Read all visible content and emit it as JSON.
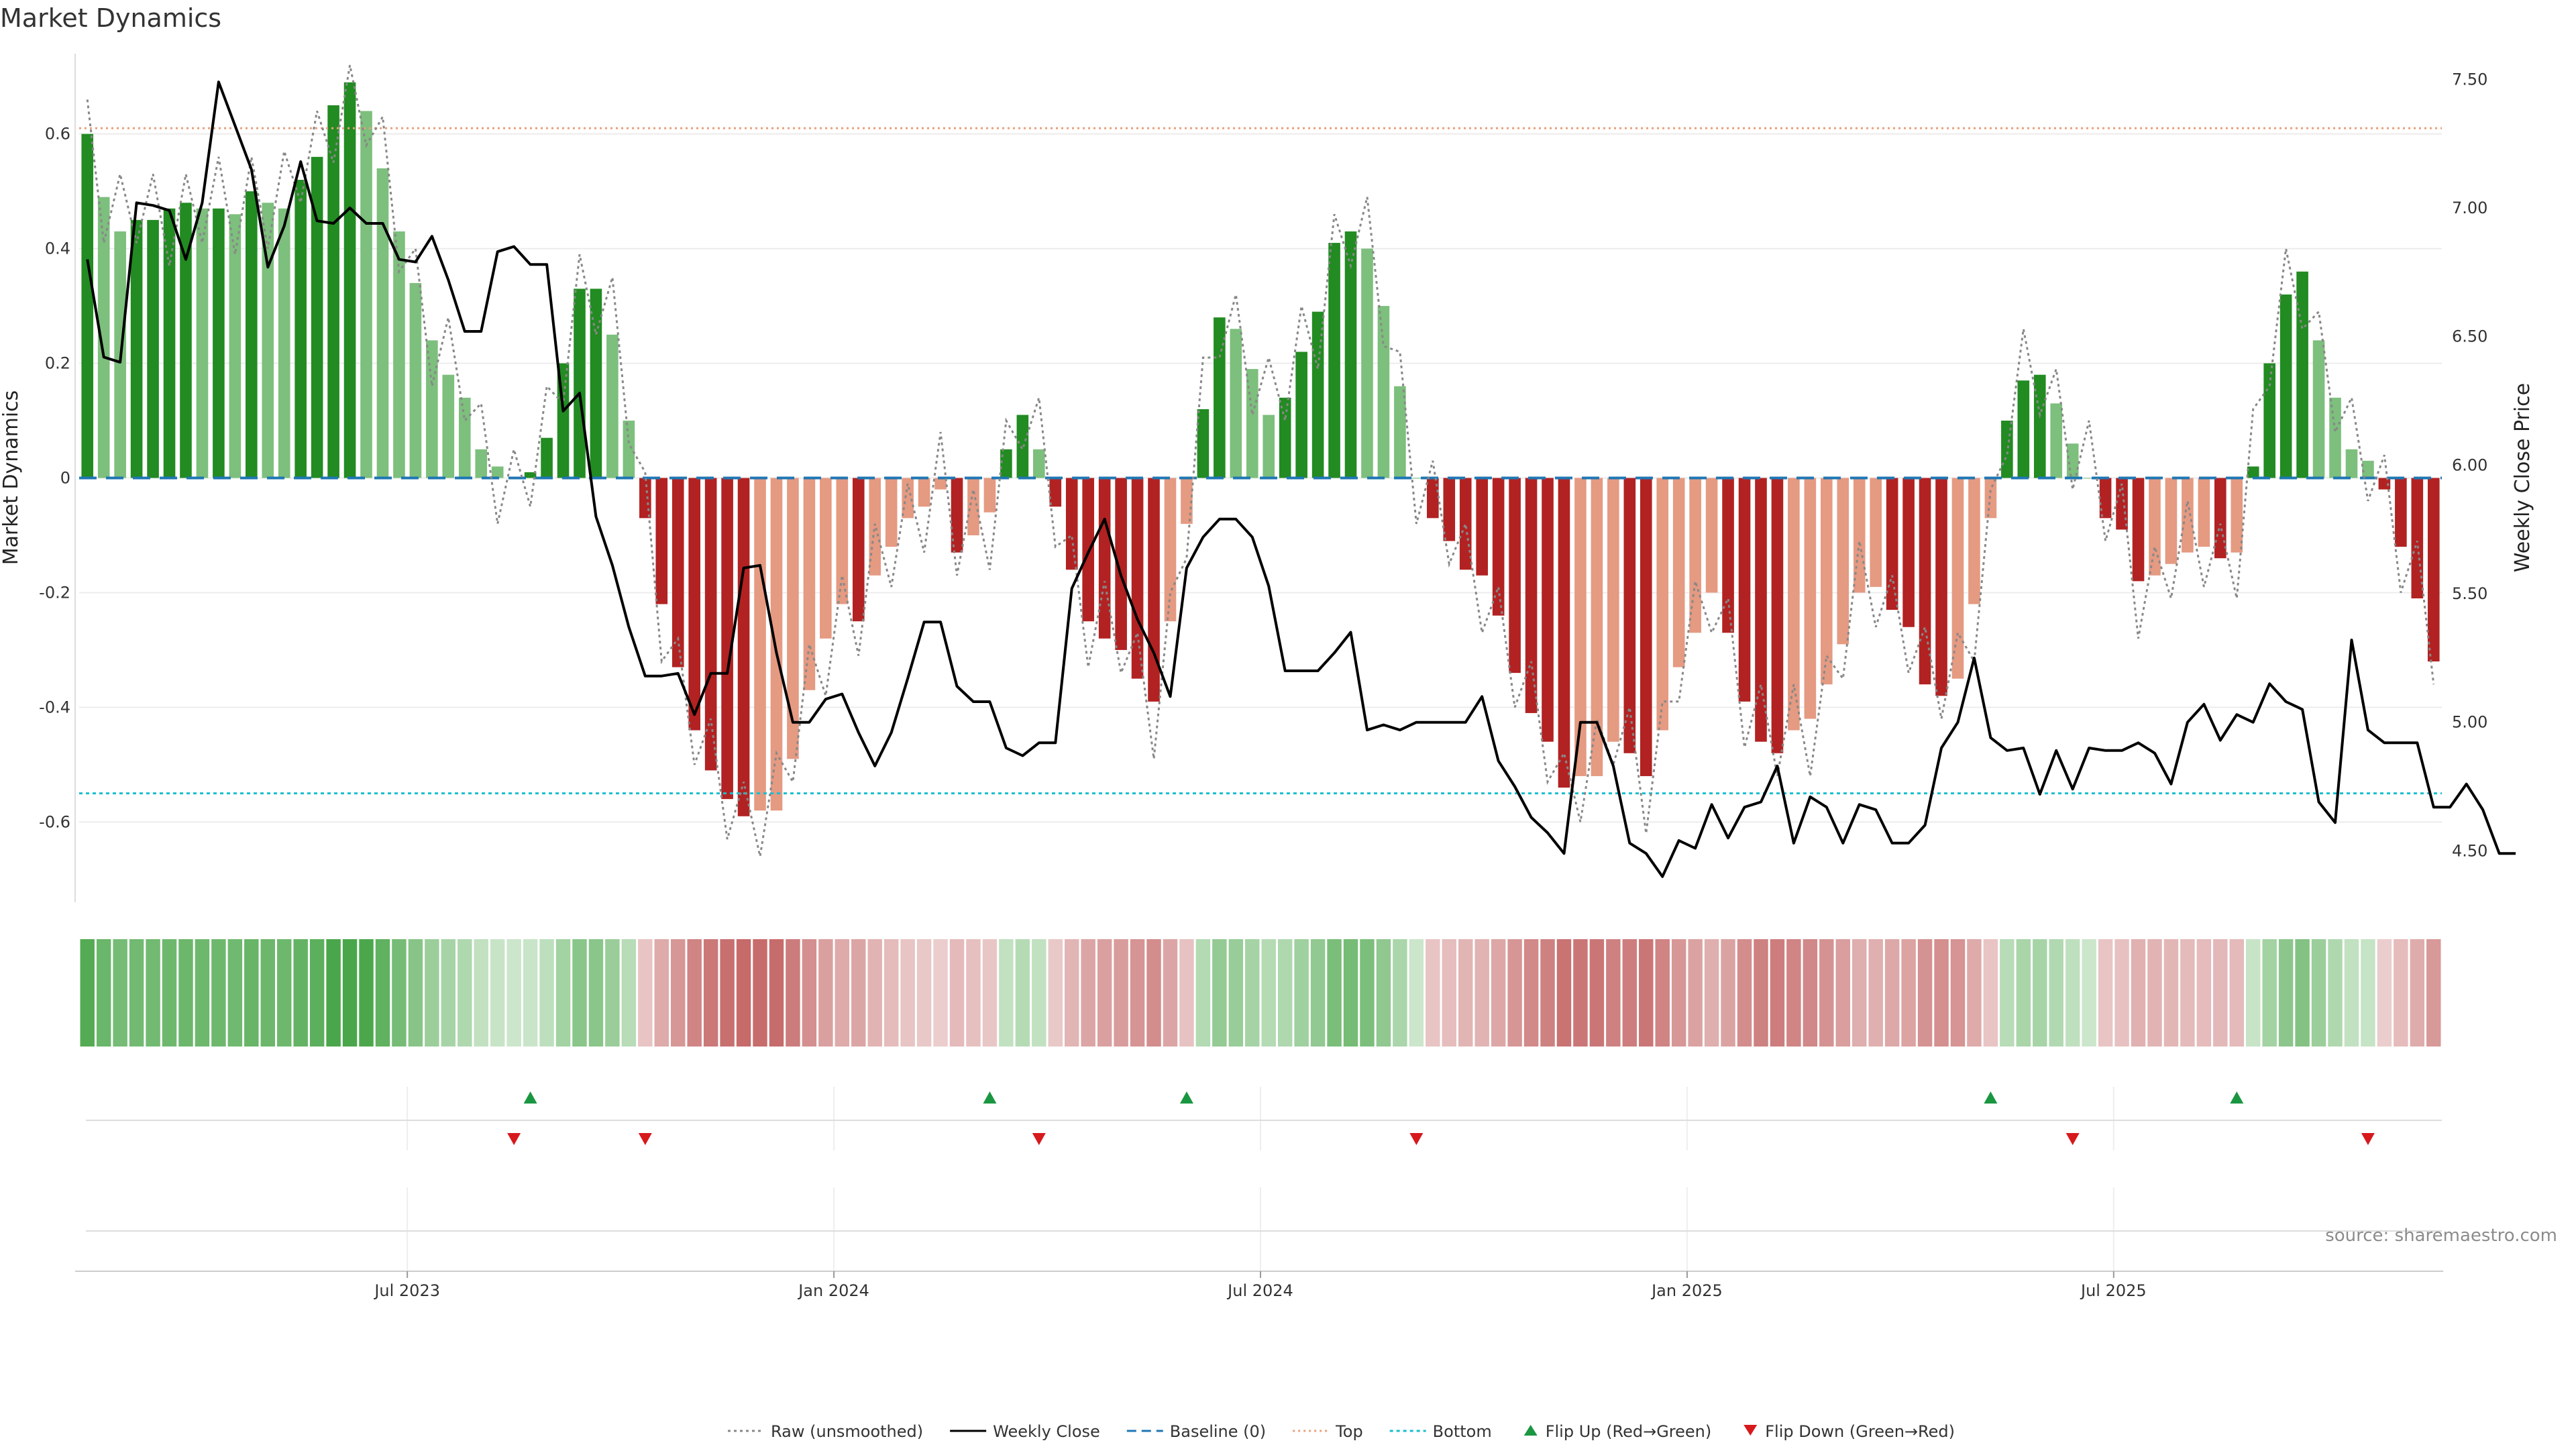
{
  "chart_data": {
    "type": "bar",
    "title": "Market Dynamics",
    "ylabel": "Market Dynamics",
    "y2label": "Weekly Close Price",
    "source": "source: sharemaestro.com",
    "ylim": [
      -0.74,
      0.74
    ],
    "y2lim": [
      4.3,
      7.6
    ],
    "yticks": [
      "-0.6",
      "-0.4",
      "-0.2",
      "0",
      "0.2",
      "0.4",
      "0.6"
    ],
    "y2ticks": [
      "4.50",
      "5.00",
      "5.50",
      "6.00",
      "6.50",
      "7.00",
      "7.50"
    ],
    "xticks": [
      "Jul 2023",
      "Jan 2024",
      "Jul 2024",
      "Jan 2025",
      "Jul 2025"
    ],
    "xtick_weeks": [
      20,
      46,
      72,
      98,
      124
    ],
    "top_line": 0.61,
    "bottom_line": -0.55,
    "baseline": 0,
    "grid": true,
    "colors": {
      "strong_up": "#228B22",
      "weak_up": "#7dbf7d",
      "strong_down": "#b22222",
      "weak_down": "#e59a82",
      "close": "#000000",
      "raw": "#888888",
      "baseline": "#1f77b4",
      "top": "#e8a07a",
      "bottom": "#17becf",
      "flip_up": "#1a9641",
      "flip_down": "#d7191c"
    },
    "bars": [
      0.6,
      0.49,
      0.43,
      0.45,
      0.45,
      0.47,
      0.48,
      0.47,
      0.47,
      0.46,
      0.5,
      0.48,
      0.47,
      0.52,
      0.56,
      0.65,
      0.69,
      0.64,
      0.54,
      0.43,
      0.34,
      0.24,
      0.18,
      0.14,
      0.05,
      0.02,
      0.0,
      0.01,
      0.07,
      0.2,
      0.33,
      0.33,
      0.25,
      0.1,
      -0.07,
      -0.22,
      -0.33,
      -0.44,
      -0.51,
      -0.56,
      -0.59,
      -0.58,
      -0.58,
      -0.49,
      -0.37,
      -0.28,
      -0.22,
      -0.25,
      -0.17,
      -0.12,
      -0.07,
      -0.05,
      -0.02,
      -0.13,
      -0.1,
      -0.06,
      0.05,
      0.11,
      0.05,
      -0.05,
      -0.16,
      -0.25,
      -0.28,
      -0.3,
      -0.35,
      -0.39,
      -0.25,
      -0.08,
      0.12,
      0.28,
      0.26,
      0.19,
      0.11,
      0.14,
      0.22,
      0.29,
      0.41,
      0.43,
      0.4,
      0.3,
      0.16,
      0.0,
      -0.07,
      -0.11,
      -0.16,
      -0.17,
      -0.24,
      -0.34,
      -0.41,
      -0.46,
      -0.54,
      -0.52,
      -0.52,
      -0.46,
      -0.48,
      -0.52,
      -0.44,
      -0.33,
      -0.27,
      -0.2,
      -0.27,
      -0.39,
      -0.46,
      -0.48,
      -0.44,
      -0.42,
      -0.36,
      -0.29,
      -0.2,
      -0.19,
      -0.23,
      -0.26,
      -0.36,
      -0.38,
      -0.35,
      -0.22,
      -0.07,
      0.1,
      0.17,
      0.18,
      0.13,
      0.06,
      0.0,
      -0.07,
      -0.09,
      -0.18,
      -0.17,
      -0.15,
      -0.13,
      -0.12,
      -0.14,
      -0.13,
      0.02,
      0.2,
      0.32,
      0.36,
      0.24,
      0.14,
      0.05,
      0.03,
      -0.02,
      -0.12,
      -0.21,
      -0.32
    ],
    "close": [
      6.8,
      6.42,
      6.4,
      7.02,
      7.01,
      6.99,
      6.8,
      7.02,
      7.49,
      7.32,
      7.15,
      6.77,
      6.93,
      7.18,
      6.95,
      6.94,
      7.0,
      6.94,
      6.94,
      6.8,
      6.79,
      6.89,
      6.72,
      6.52,
      6.52,
      6.83,
      6.85,
      6.78,
      6.78,
      6.21,
      6.28,
      5.8,
      5.61,
      5.37,
      5.18,
      5.18,
      5.19,
      5.03,
      5.19,
      5.19,
      5.6,
      5.61,
      5.27,
      5.0,
      5.0,
      5.09,
      5.11,
      4.96,
      4.83,
      4.96,
      5.17,
      5.39,
      5.39,
      5.14,
      5.08,
      5.08,
      4.9,
      4.87,
      4.92,
      4.92,
      5.52,
      5.66,
      5.79,
      5.57,
      5.4,
      5.27,
      5.1,
      5.6,
      5.72,
      5.79,
      5.79,
      5.72,
      5.53,
      5.2,
      5.2,
      5.2,
      5.27,
      5.35,
      4.97,
      4.99,
      4.97,
      5.0,
      5.0,
      5.0,
      5.0,
      5.1,
      4.85,
      4.75,
      4.63,
      4.57,
      4.49,
      5.0,
      5.0,
      4.83,
      4.53,
      4.49,
      4.4,
      4.54,
      4.51,
      4.68,
      4.55,
      4.67,
      4.69,
      4.83,
      4.53,
      4.71,
      4.67,
      4.53,
      4.68,
      4.66,
      4.53,
      4.53,
      4.6,
      4.9,
      5.0,
      5.25,
      4.94,
      4.89,
      4.9,
      4.72,
      4.89,
      4.74,
      4.9,
      4.89,
      4.89,
      4.92,
      4.88,
      4.76,
      5.0,
      5.07,
      4.93,
      5.03,
      5.0,
      5.15,
      5.08,
      5.05,
      4.69,
      4.61,
      5.32,
      4.97,
      4.92,
      4.92,
      4.92,
      4.67,
      4.67,
      4.76,
      4.66,
      4.49,
      4.49
    ]
  },
  "annotations": {
    "flip_up_weeks": [
      27,
      55,
      67,
      116,
      131
    ],
    "flip_down_weeks": [
      26,
      34,
      58,
      81,
      121,
      139
    ]
  },
  "legend": [
    {
      "label": "Raw (unsmoothed)",
      "icon": "dotted-line"
    },
    {
      "label": "Weekly Close",
      "icon": "solid-line"
    },
    {
      "label": "Baseline (0)",
      "icon": "dashed-line"
    },
    {
      "label": "Top",
      "icon": "dotted-line"
    },
    {
      "label": "Bottom",
      "icon": "dotted-line"
    },
    {
      "label": "Flip Up (Red→Green)",
      "icon": "triangle-up"
    },
    {
      "label": "Flip Down (Green→Red)",
      "icon": "triangle-down"
    }
  ]
}
